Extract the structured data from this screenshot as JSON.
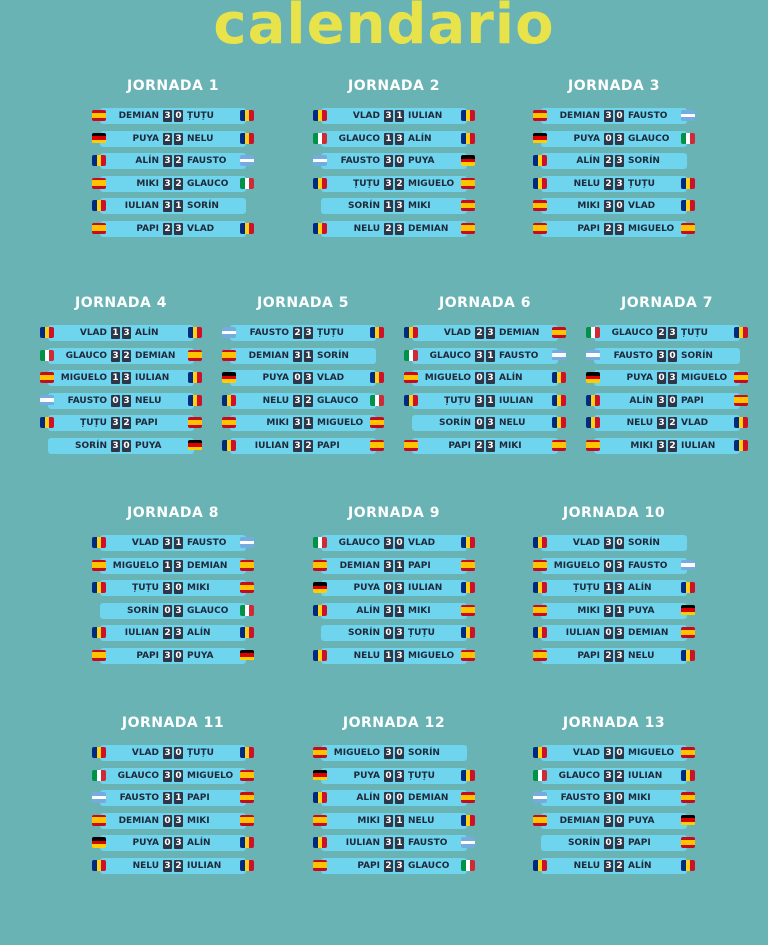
{
  "title": "calendario",
  "colors": {
    "background": "#6ab3b4",
    "title": "#e8e34a",
    "pill": "#6fd4ee",
    "score_bg": "#2d3748",
    "team_text": "#1e2a3a"
  },
  "team_flags": {
    "DEMIAN": "spain-flag-icon",
    "MIKI": "spain-flag-icon",
    "PAPI": "spain-flag-icon",
    "MIGUELO": "spain-flag-icon",
    "ȚUȚU": "romania-flag-icon",
    "NELU": "romania-flag-icon",
    "IULIAN": "romania-flag-icon",
    "VLAD": "romania-flag-icon",
    "SORIN": "romania-flag-icon",
    "ALÍN": "romania-flag-icon",
    "PUYA": "germany-flag-icon",
    "FAUSTO": "argentina-flag-icon",
    "GLAUCO": "italy-flag-icon"
  },
  "jornadas": [
    {
      "title": "JORNADA 1",
      "matches": [
        {
          "home": "DEMIAN",
          "home_goals": "3",
          "away_goals": "0",
          "away": "ȚUȚU"
        },
        {
          "home": "PUYA",
          "home_goals": "2",
          "away_goals": "3",
          "away": "NELU"
        },
        {
          "home": "ALÍN",
          "home_goals": "3",
          "away_goals": "2",
          "away": "FAUSTO"
        },
        {
          "home": "MIKI",
          "home_goals": "3",
          "away_goals": "2",
          "away": "GLAUCO"
        },
        {
          "home": "IULIAN",
          "home_goals": "3",
          "away_goals": "1",
          "away": "SORÍN"
        },
        {
          "home": "PAPI",
          "home_goals": "2",
          "away_goals": "3",
          "away": "VLAD"
        }
      ]
    },
    {
      "title": "JORNADA 2",
      "matches": [
        {
          "home": "VLAD",
          "home_goals": "3",
          "away_goals": "1",
          "away": "IULIAN"
        },
        {
          "home": "GLAUCO",
          "home_goals": "1",
          "away_goals": "3",
          "away": "ALÍN"
        },
        {
          "home": "FAUSTO",
          "home_goals": "3",
          "away_goals": "0",
          "away": "PUYA"
        },
        {
          "home": "ȚUȚU",
          "home_goals": "3",
          "away_goals": "2",
          "away": "MIGUELO"
        },
        {
          "home": "SORÍN",
          "home_goals": "1",
          "away_goals": "3",
          "away": "MIKI"
        },
        {
          "home": "NELU",
          "home_goals": "2",
          "away_goals": "3",
          "away": "DEMIAN"
        }
      ]
    },
    {
      "title": "JORNADA 3",
      "matches": [
        {
          "home": "DEMIAN",
          "home_goals": "3",
          "away_goals": "0",
          "away": "FAUSTO"
        },
        {
          "home": "PUYA",
          "home_goals": "0",
          "away_goals": "3",
          "away": "GLAUCO"
        },
        {
          "home": "ALÍN",
          "home_goals": "2",
          "away_goals": "3",
          "away": "SORÍN"
        },
        {
          "home": "NELU",
          "home_goals": "2",
          "away_goals": "3",
          "away": "ȚUȚU"
        },
        {
          "home": "MIKI",
          "home_goals": "3",
          "away_goals": "0",
          "away": "VLAD"
        },
        {
          "home": "PAPI",
          "home_goals": "2",
          "away_goals": "3",
          "away": "MIGUELO"
        }
      ]
    },
    {
      "title": "JORNADA 4",
      "matches": [
        {
          "home": "VLAD",
          "home_goals": "1",
          "away_goals": "3",
          "away": "ALÍN"
        },
        {
          "home": "GLAUCO",
          "home_goals": "3",
          "away_goals": "2",
          "away": "DEMIAN"
        },
        {
          "home": "MIGUELO",
          "home_goals": "1",
          "away_goals": "3",
          "away": "IULIAN"
        },
        {
          "home": "FAUSTO",
          "home_goals": "0",
          "away_goals": "3",
          "away": "NELU"
        },
        {
          "home": "ȚUȚU",
          "home_goals": "3",
          "away_goals": "2",
          "away": "PAPI"
        },
        {
          "home": "SORÍN",
          "home_goals": "3",
          "away_goals": "0",
          "away": "PUYA"
        }
      ]
    },
    {
      "title": "JORNADA 5",
      "matches": [
        {
          "home": "FAUSTO",
          "home_goals": "2",
          "away_goals": "3",
          "away": "ȚUȚU"
        },
        {
          "home": "DEMIAN",
          "home_goals": "3",
          "away_goals": "1",
          "away": "SORÍN"
        },
        {
          "home": "PUYA",
          "home_goals": "0",
          "away_goals": "3",
          "away": "VLAD"
        },
        {
          "home": "NELU",
          "home_goals": "3",
          "away_goals": "2",
          "away": "GLAUCO"
        },
        {
          "home": "MIKI",
          "home_goals": "3",
          "away_goals": "1",
          "away": "MIGUELO"
        },
        {
          "home": "IULIAN",
          "home_goals": "3",
          "away_goals": "2",
          "away": "PAPI"
        }
      ]
    },
    {
      "title": "JORNADA 6",
      "matches": [
        {
          "home": "VLAD",
          "home_goals": "2",
          "away_goals": "3",
          "away": "DEMIAN"
        },
        {
          "home": "GLAUCO",
          "home_goals": "3",
          "away_goals": "1",
          "away": "FAUSTO"
        },
        {
          "home": "MIGUELO",
          "home_goals": "0",
          "away_goals": "3",
          "away": "ALÍN"
        },
        {
          "home": "ȚUȚU",
          "home_goals": "3",
          "away_goals": "1",
          "away": "IULIAN"
        },
        {
          "home": "SORÍN",
          "home_goals": "0",
          "away_goals": "3",
          "away": "NELU"
        },
        {
          "home": "PAPI",
          "home_goals": "2",
          "away_goals": "3",
          "away": "MIKI"
        }
      ]
    },
    {
      "title": "JORNADA 7",
      "matches": [
        {
          "home": "GLAUCO",
          "home_goals": "2",
          "away_goals": "3",
          "away": "ȚUȚU"
        },
        {
          "home": "FAUSTO",
          "home_goals": "3",
          "away_goals": "0",
          "away": "SORÍN"
        },
        {
          "home": "PUYA",
          "home_goals": "0",
          "away_goals": "3",
          "away": "MIGUELO"
        },
        {
          "home": "ALÍN",
          "home_goals": "3",
          "away_goals": "0",
          "away": "PAPI"
        },
        {
          "home": "NELU",
          "home_goals": "3",
          "away_goals": "2",
          "away": "VLAD"
        },
        {
          "home": "MIKI",
          "home_goals": "3",
          "away_goals": "2",
          "away": "IULIAN"
        }
      ]
    },
    {
      "title": "JORNADA 8",
      "matches": [
        {
          "home": "VLAD",
          "home_goals": "3",
          "away_goals": "1",
          "away": "FAUSTO"
        },
        {
          "home": "MIGUELO",
          "home_goals": "1",
          "away_goals": "3",
          "away": "DEMIAN"
        },
        {
          "home": "ȚUȚU",
          "home_goals": "3",
          "away_goals": "0",
          "away": "MIKI"
        },
        {
          "home": "SORÍN",
          "home_goals": "0",
          "away_goals": "3",
          "away": "GLAUCO"
        },
        {
          "home": "IULIAN",
          "home_goals": "2",
          "away_goals": "3",
          "away": "ALÍN"
        },
        {
          "home": "PAPI",
          "home_goals": "3",
          "away_goals": "0",
          "away": "PUYA"
        }
      ]
    },
    {
      "title": "JORNADA 9",
      "matches": [
        {
          "home": "GLAUCO",
          "home_goals": "3",
          "away_goals": "0",
          "away": "VLAD"
        },
        {
          "home": "DEMIAN",
          "home_goals": "3",
          "away_goals": "1",
          "away": "PAPI"
        },
        {
          "home": "PUYA",
          "home_goals": "0",
          "away_goals": "3",
          "away": "IULIAN"
        },
        {
          "home": "ALÍN",
          "home_goals": "3",
          "away_goals": "1",
          "away": "MIKI"
        },
        {
          "home": "SORÍN",
          "home_goals": "0",
          "away_goals": "3",
          "away": "ȚUȚU"
        },
        {
          "home": "NELU",
          "home_goals": "1",
          "away_goals": "3",
          "away": "MIGUELO"
        }
      ]
    },
    {
      "title": "JORNADA 10",
      "matches": [
        {
          "home": "VLAD",
          "home_goals": "3",
          "away_goals": "0",
          "away": "SORÍN"
        },
        {
          "home": "MIGUELO",
          "home_goals": "0",
          "away_goals": "3",
          "away": "FAUSTO"
        },
        {
          "home": "ȚUȚU",
          "home_goals": "1",
          "away_goals": "3",
          "away": "ALÍN"
        },
        {
          "home": "MIKI",
          "home_goals": "3",
          "away_goals": "1",
          "away": "PUYA"
        },
        {
          "home": "IULIAN",
          "home_goals": "0",
          "away_goals": "3",
          "away": "DEMIAN"
        },
        {
          "home": "PAPI",
          "home_goals": "2",
          "away_goals": "3",
          "away": "NELU"
        }
      ]
    },
    {
      "title": "JORNADA 11",
      "matches": [
        {
          "home": "VLAD",
          "home_goals": "3",
          "away_goals": "0",
          "away": "ȚUȚU"
        },
        {
          "home": "GLAUCO",
          "home_goals": "3",
          "away_goals": "0",
          "away": "MIGUELO"
        },
        {
          "home": "FAUSTO",
          "home_goals": "3",
          "away_goals": "1",
          "away": "PAPI"
        },
        {
          "home": "DEMIAN",
          "home_goals": "0",
          "away_goals": "3",
          "away": "MIKI"
        },
        {
          "home": "PUYA",
          "home_goals": "0",
          "away_goals": "3",
          "away": "ALÍN"
        },
        {
          "home": "NELU",
          "home_goals": "3",
          "away_goals": "2",
          "away": "IULIAN"
        }
      ]
    },
    {
      "title": "JORNADA 12",
      "matches": [
        {
          "home": "MIGUELO",
          "home_goals": "3",
          "away_goals": "0",
          "away": "SORÍN"
        },
        {
          "home": "PUYA",
          "home_goals": "0",
          "away_goals": "3",
          "away": "ȚUȚU"
        },
        {
          "home": "ALÍN",
          "home_goals": "0",
          "away_goals": "0",
          "away": "DEMIAN"
        },
        {
          "home": "MIKI",
          "home_goals": "3",
          "away_goals": "1",
          "away": "NELU"
        },
        {
          "home": "IULIAN",
          "home_goals": "3",
          "away_goals": "1",
          "away": "FAUSTO"
        },
        {
          "home": "PAPI",
          "home_goals": "2",
          "away_goals": "3",
          "away": "GLAUCO"
        }
      ]
    },
    {
      "title": "JORNADA 13",
      "matches": [
        {
          "home": "VLAD",
          "home_goals": "3",
          "away_goals": "0",
          "away": "MIGUELO"
        },
        {
          "home": "GLAUCO",
          "home_goals": "3",
          "away_goals": "2",
          "away": "IULIAN"
        },
        {
          "home": "FAUSTO",
          "home_goals": "3",
          "away_goals": "0",
          "away": "MIKI"
        },
        {
          "home": "DEMIAN",
          "home_goals": "3",
          "away_goals": "0",
          "away": "PUYA"
        },
        {
          "home": "SORÍN",
          "home_goals": "0",
          "away_goals": "3",
          "away": "PAPI"
        },
        {
          "home": "NELU",
          "home_goals": "3",
          "away_goals": "2",
          "away": "ALÍN"
        }
      ]
    }
  ]
}
